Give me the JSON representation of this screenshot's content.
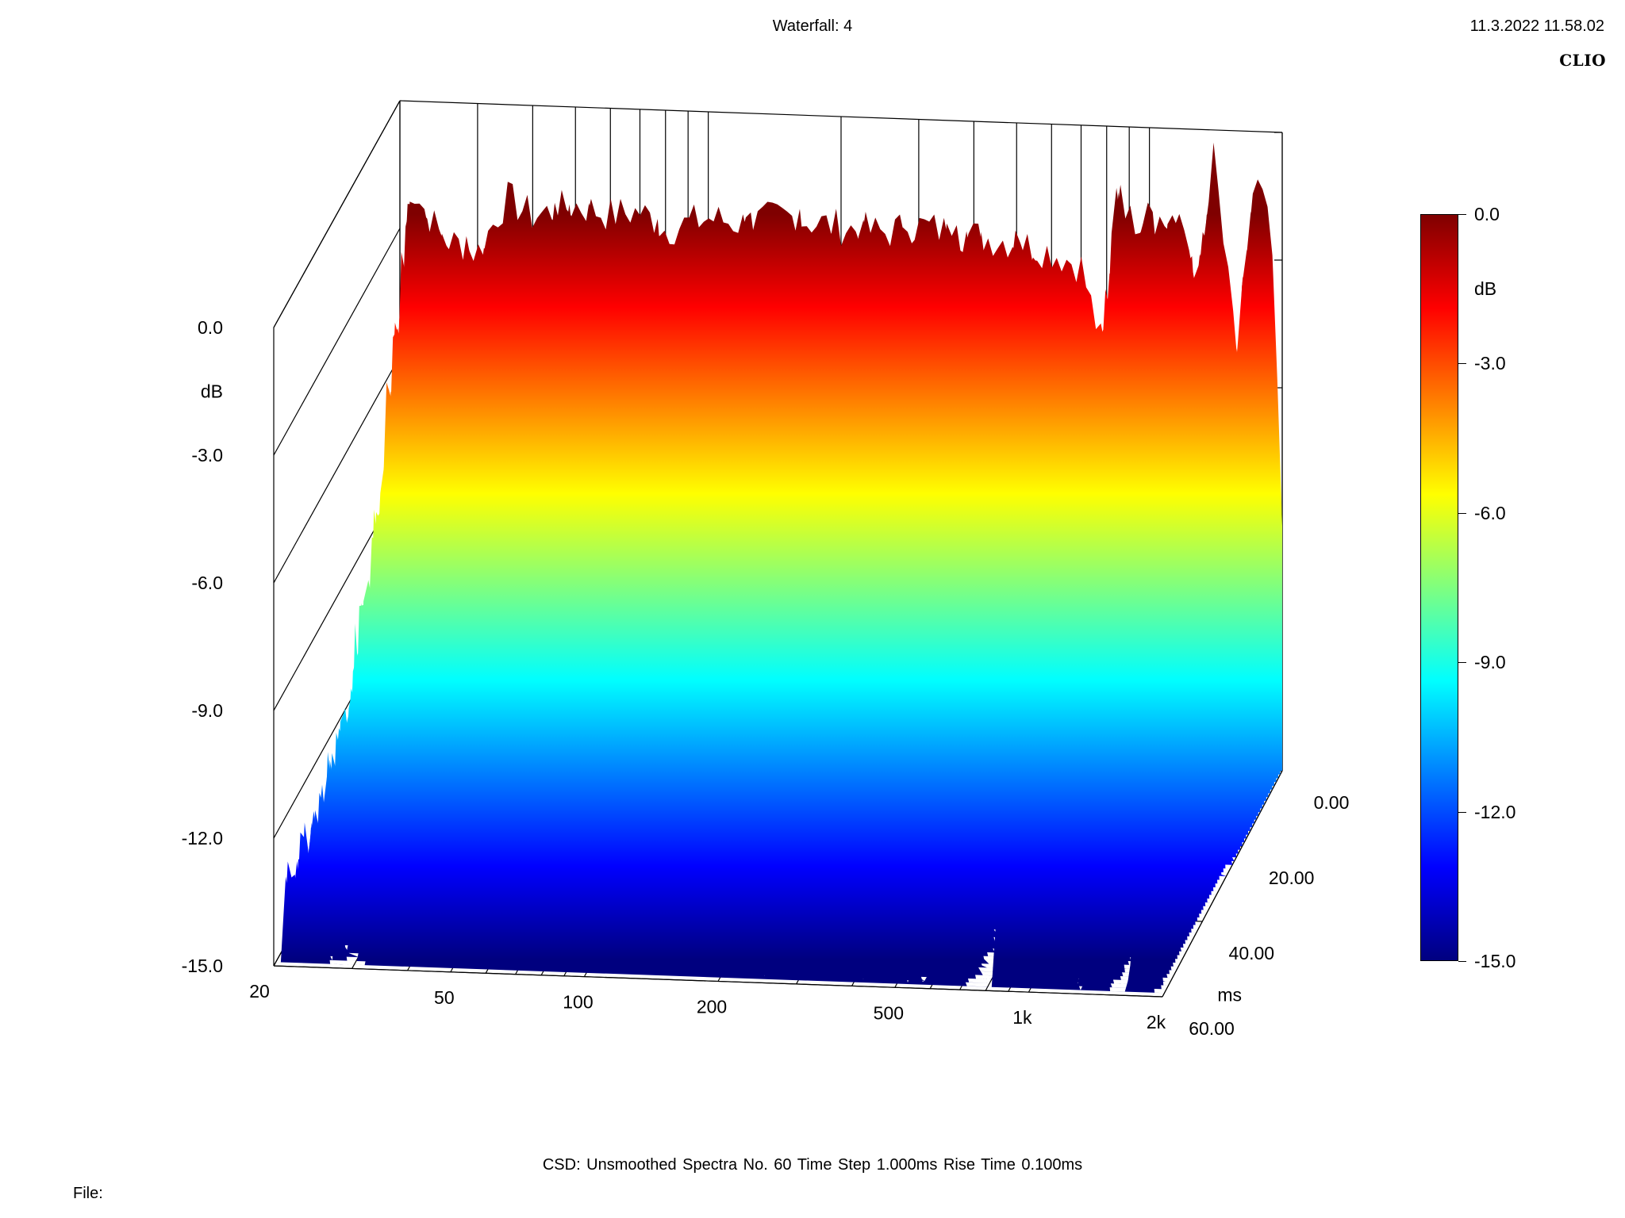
{
  "header": {
    "title": "Waterfall: 4",
    "timestamp": "11.3.2022 11.58.02",
    "brand": "CLIO"
  },
  "footer": {
    "summary": "CSD:   Unsmoothed   Spectra No. 60   Time Step 1.000ms   Rise Time 0.100ms",
    "file_label": "File:"
  },
  "colors": {
    "scale": [
      "#00007f",
      "#0000ff",
      "#007fff",
      "#00ffff",
      "#7fff7f",
      "#ffff00",
      "#ff7f00",
      "#ff0000",
      "#7f0000"
    ]
  },
  "chart_data": {
    "type": "waterfall",
    "title": "Waterfall: 4",
    "x_axis": {
      "scale": "log",
      "range": [
        20,
        2000
      ],
      "tick_values": [
        20,
        50,
        100,
        200,
        500,
        1000,
        2000
      ],
      "tick_labels": [
        "20",
        "50",
        "100",
        "200",
        "500",
        "1k",
        "2k"
      ]
    },
    "z_axis": {
      "label": "ms",
      "range": [
        0,
        60
      ],
      "tick_values": [
        0,
        20,
        40,
        60
      ],
      "tick_labels": [
        "0.00",
        "20.00",
        "40.00",
        "60.00"
      ]
    },
    "y_axis": {
      "label": "dB",
      "range": [
        -15,
        0
      ],
      "tick_values": [
        0,
        -3,
        -6,
        -9,
        -12,
        -15
      ],
      "tick_labels": [
        "0.0",
        "-3.0",
        "-6.0",
        "-9.0",
        "-12.0",
        "-15.0"
      ]
    },
    "colorbar": {
      "label": "dB",
      "range": [
        -15,
        0
      ],
      "tick_values": [
        0,
        -3,
        -6,
        -9,
        -12,
        -15
      ],
      "tick_labels": [
        "0.0",
        "-3.0",
        "-6.0",
        "-9.0",
        "-12.0",
        "-15.0"
      ]
    },
    "spectra_count": 60,
    "time_step_ms": 1.0,
    "rise_time_ms": 0.1,
    "first_spectrum": {
      "time_ms": 0,
      "x": [
        20,
        21,
        22,
        25,
        30,
        35,
        40,
        50,
        60,
        70,
        80,
        100,
        120,
        150,
        200,
        250,
        300,
        400,
        500,
        600,
        700,
        750,
        800,
        850,
        900,
        1000,
        1100,
        1200,
        1300,
        1400,
        1500,
        1600,
        1700,
        1800,
        1900,
        2000
      ],
      "y": [
        -8.5,
        -2.0,
        -2.3,
        -3.2,
        -3.5,
        -2.2,
        -2.6,
        -2.3,
        -2.5,
        -2.4,
        -2.8,
        -2.5,
        -2.6,
        -2.4,
        -2.6,
        -2.7,
        -2.5,
        -2.7,
        -2.8,
        -3.0,
        -3.3,
        -4.5,
        -5.5,
        -1.0,
        -2.2,
        -2.0,
        -2.3,
        -2.4,
        -3.6,
        -0.6,
        -3.4,
        -5.8,
        -1.8,
        -1.3,
        -3.0,
        -9.2
      ]
    },
    "decay_profile": {
      "time_ms": [
        0,
        10,
        20,
        30,
        40,
        50,
        60
      ],
      "level_dB": [
        -2.5,
        -6.5,
        -10.0,
        -12.0,
        -13.0,
        -13.5,
        -14.0
      ]
    }
  }
}
